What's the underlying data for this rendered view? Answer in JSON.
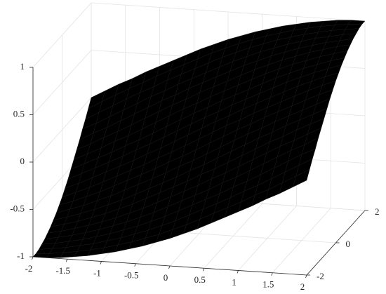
{
  "chart_data": {
    "type": "surface",
    "colormap": "parula",
    "grid": true,
    "x": [
      -2,
      -1.8,
      -1.6,
      -1.4,
      -1.2,
      -1,
      -0.8,
      -0.6,
      -0.4,
      -0.2,
      0,
      0.2,
      0.4,
      0.6,
      0.8,
      1,
      1.2,
      1.4,
      1.6,
      1.8,
      2
    ],
    "y": [
      -2,
      -1.8,
      -1.6,
      -1.4,
      -1.2,
      -1,
      -0.8,
      -0.6,
      -0.4,
      -0.2,
      0,
      0.2,
      0.4,
      0.6,
      0.8,
      1,
      1.2,
      1.4,
      1.6,
      1.8,
      2
    ],
    "z": [
      [
        -1,
        -1,
        -0.99,
        -0.97,
        -0.95,
        -0.92,
        -0.89,
        -0.85,
        -0.81,
        -0.76,
        -0.71,
        -0.65,
        -0.59,
        -0.52,
        -0.45,
        -0.38,
        -0.31,
        -0.23,
        -0.16,
        -0.08,
        0
      ],
      [
        -1,
        -0.99,
        -0.97,
        -0.95,
        -0.92,
        -0.89,
        -0.85,
        -0.81,
        -0.76,
        -0.71,
        -0.65,
        -0.59,
        -0.52,
        -0.45,
        -0.38,
        -0.31,
        -0.23,
        -0.16,
        -0.08,
        0,
        0.08
      ],
      [
        -0.99,
        -0.97,
        -0.95,
        -0.92,
        -0.89,
        -0.85,
        -0.81,
        -0.76,
        -0.71,
        -0.65,
        -0.59,
        -0.52,
        -0.45,
        -0.38,
        -0.31,
        -0.23,
        -0.16,
        -0.08,
        0,
        0.08,
        0.16
      ],
      [
        -0.97,
        -0.95,
        -0.92,
        -0.89,
        -0.85,
        -0.81,
        -0.76,
        -0.71,
        -0.65,
        -0.59,
        -0.52,
        -0.45,
        -0.38,
        -0.31,
        -0.23,
        -0.16,
        -0.08,
        0,
        0.08,
        0.16,
        0.23
      ],
      [
        -0.95,
        -0.92,
        -0.89,
        -0.85,
        -0.81,
        -0.76,
        -0.71,
        -0.65,
        -0.59,
        -0.52,
        -0.45,
        -0.38,
        -0.31,
        -0.23,
        -0.16,
        -0.08,
        0,
        0.08,
        0.16,
        0.23,
        0.31
      ],
      [
        -0.92,
        -0.89,
        -0.85,
        -0.81,
        -0.76,
        -0.71,
        -0.65,
        -0.59,
        -0.52,
        -0.45,
        -0.38,
        -0.31,
        -0.23,
        -0.16,
        -0.08,
        0,
        0.08,
        0.16,
        0.23,
        0.31,
        0.38
      ],
      [
        -0.89,
        -0.85,
        -0.81,
        -0.76,
        -0.71,
        -0.65,
        -0.59,
        -0.52,
        -0.45,
        -0.38,
        -0.31,
        -0.23,
        -0.16,
        -0.08,
        0,
        0.08,
        0.16,
        0.23,
        0.31,
        0.38,
        0.45
      ],
      [
        -0.85,
        -0.81,
        -0.76,
        -0.71,
        -0.65,
        -0.59,
        -0.52,
        -0.45,
        -0.38,
        -0.31,
        -0.23,
        -0.16,
        -0.08,
        0,
        0.08,
        0.16,
        0.23,
        0.31,
        0.38,
        0.45,
        0.52
      ],
      [
        -0.81,
        -0.76,
        -0.71,
        -0.65,
        -0.59,
        -0.52,
        -0.45,
        -0.38,
        -0.31,
        -0.23,
        -0.16,
        -0.08,
        0,
        0.08,
        0.16,
        0.23,
        0.31,
        0.38,
        0.45,
        0.52,
        0.59
      ],
      [
        -0.76,
        -0.71,
        -0.65,
        -0.59,
        -0.52,
        -0.45,
        -0.38,
        -0.31,
        -0.23,
        -0.16,
        -0.08,
        0,
        0.08,
        0.16,
        0.23,
        0.31,
        0.38,
        0.45,
        0.52,
        0.59,
        0.65
      ],
      [
        -0.71,
        -0.65,
        -0.59,
        -0.52,
        -0.45,
        -0.38,
        -0.31,
        -0.23,
        -0.16,
        -0.08,
        0,
        0.08,
        0.16,
        0.23,
        0.31,
        0.38,
        0.45,
        0.52,
        0.59,
        0.65,
        0.71
      ],
      [
        -0.65,
        -0.59,
        -0.52,
        -0.45,
        -0.38,
        -0.31,
        -0.23,
        -0.16,
        -0.08,
        0,
        0.08,
        0.16,
        0.23,
        0.31,
        0.38,
        0.45,
        0.52,
        0.59,
        0.65,
        0.71,
        0.76
      ],
      [
        -0.59,
        -0.52,
        -0.45,
        -0.38,
        -0.31,
        -0.23,
        -0.16,
        -0.08,
        0,
        0.08,
        0.16,
        0.23,
        0.31,
        0.38,
        0.45,
        0.52,
        0.59,
        0.65,
        0.71,
        0.76,
        0.81
      ],
      [
        -0.52,
        -0.45,
        -0.38,
        -0.31,
        -0.23,
        -0.16,
        -0.08,
        0,
        0.08,
        0.16,
        0.23,
        0.31,
        0.38,
        0.45,
        0.52,
        0.59,
        0.65,
        0.71,
        0.76,
        0.81,
        0.85
      ],
      [
        -0.45,
        -0.38,
        -0.31,
        -0.23,
        -0.16,
        -0.08,
        0,
        0.08,
        0.16,
        0.23,
        0.31,
        0.38,
        0.45,
        0.52,
        0.59,
        0.65,
        0.71,
        0.76,
        0.81,
        0.85,
        0.89
      ],
      [
        -0.38,
        -0.31,
        -0.23,
        -0.16,
        -0.08,
        0,
        0.08,
        0.16,
        0.23,
        0.31,
        0.38,
        0.45,
        0.52,
        0.59,
        0.65,
        0.71,
        0.76,
        0.81,
        0.85,
        0.89,
        0.92
      ],
      [
        -0.31,
        -0.23,
        -0.16,
        -0.08,
        0,
        0.08,
        0.16,
        0.23,
        0.31,
        0.38,
        0.45,
        0.52,
        0.59,
        0.65,
        0.71,
        0.76,
        0.81,
        0.85,
        0.89,
        0.92,
        0.95
      ],
      [
        -0.23,
        -0.16,
        -0.08,
        0,
        0.08,
        0.16,
        0.23,
        0.31,
        0.38,
        0.45,
        0.52,
        0.59,
        0.65,
        0.71,
        0.76,
        0.81,
        0.85,
        0.89,
        0.92,
        0.95,
        0.97
      ],
      [
        -0.16,
        -0.08,
        0,
        0.08,
        0.16,
        0.23,
        0.31,
        0.38,
        0.45,
        0.52,
        0.59,
        0.65,
        0.71,
        0.76,
        0.81,
        0.85,
        0.89,
        0.92,
        0.95,
        0.97,
        0.99
      ],
      [
        -0.08,
        0,
        0.08,
        0.16,
        0.23,
        0.31,
        0.38,
        0.45,
        0.52,
        0.59,
        0.65,
        0.71,
        0.76,
        0.81,
        0.85,
        0.89,
        0.92,
        0.95,
        0.97,
        0.99,
        1
      ],
      [
        0,
        0.08,
        0.16,
        0.23,
        0.31,
        0.38,
        0.45,
        0.52,
        0.59,
        0.65,
        0.71,
        0.76,
        0.81,
        0.85,
        0.89,
        0.92,
        0.95,
        0.97,
        0.99,
        1,
        1
      ]
    ],
    "xlim": [
      -2,
      2
    ],
    "ylim": [
      -2,
      2
    ],
    "zlim": [
      -1,
      1
    ],
    "xticks": [
      -2,
      -1.5,
      -1,
      -0.5,
      0,
      0.5,
      1,
      1.5,
      2
    ],
    "yticks": [
      -2,
      0,
      2
    ],
    "zticks": [
      -1,
      -0.5,
      0,
      0.5,
      1
    ]
  }
}
